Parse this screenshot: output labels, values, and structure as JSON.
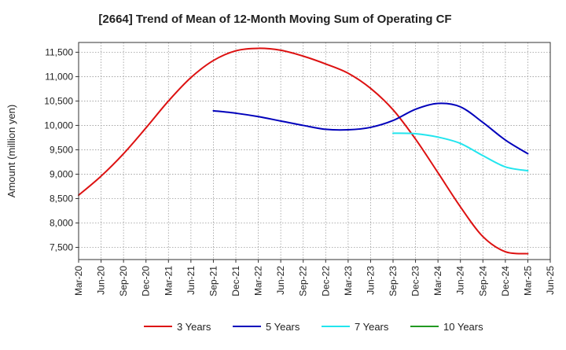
{
  "chart_data": {
    "type": "line",
    "title": "[2664]  Trend of Mean of 12-Month Moving Sum of Operating CF",
    "xlabel": "",
    "ylabel": "Amount (million yen)",
    "x_labels": [
      "Mar-20",
      "Jun-20",
      "Sep-20",
      "Dec-20",
      "Mar-21",
      "Jun-21",
      "Sep-21",
      "Dec-21",
      "Mar-22",
      "Jun-22",
      "Sep-22",
      "Dec-22",
      "Mar-23",
      "Jun-23",
      "Sep-23",
      "Dec-23",
      "Mar-24",
      "Jun-24",
      "Sep-24",
      "Dec-24",
      "Mar-25",
      "Jun-25"
    ],
    "ylim": [
      7250,
      11700
    ],
    "y_ticks": [
      7500,
      8000,
      8500,
      9000,
      9500,
      10000,
      10500,
      11000,
      11500
    ],
    "y_tick_labels": [
      "7,500",
      "8,000",
      "8,500",
      "9,000",
      "9,500",
      "10,000",
      "10,500",
      "11,000",
      "11,500"
    ],
    "grid": true,
    "legend_position": "bottom",
    "series": [
      {
        "name": "3 Years",
        "color": "#dd1111",
        "start_index": 0,
        "values": [
          8570,
          8960,
          9420,
          9950,
          10500,
          10980,
          11330,
          11530,
          11580,
          11540,
          11420,
          11260,
          11070,
          10760,
          10320,
          9720,
          9030,
          8330,
          7720,
          7410,
          7370
        ]
      },
      {
        "name": "5 Years",
        "color": "#0000bb",
        "start_index": 6,
        "values": [
          10300,
          10250,
          10180,
          10090,
          10000,
          9920,
          9910,
          9960,
          10100,
          10330,
          10450,
          10380,
          10060,
          9700,
          9420
        ]
      },
      {
        "name": "7 Years",
        "color": "#22e5ee",
        "start_index": 14,
        "values": [
          9840,
          9830,
          9760,
          9630,
          9380,
          9150,
          9070
        ]
      },
      {
        "name": "10 Years",
        "color": "#229922",
        "start_index": 0,
        "values": []
      }
    ]
  }
}
